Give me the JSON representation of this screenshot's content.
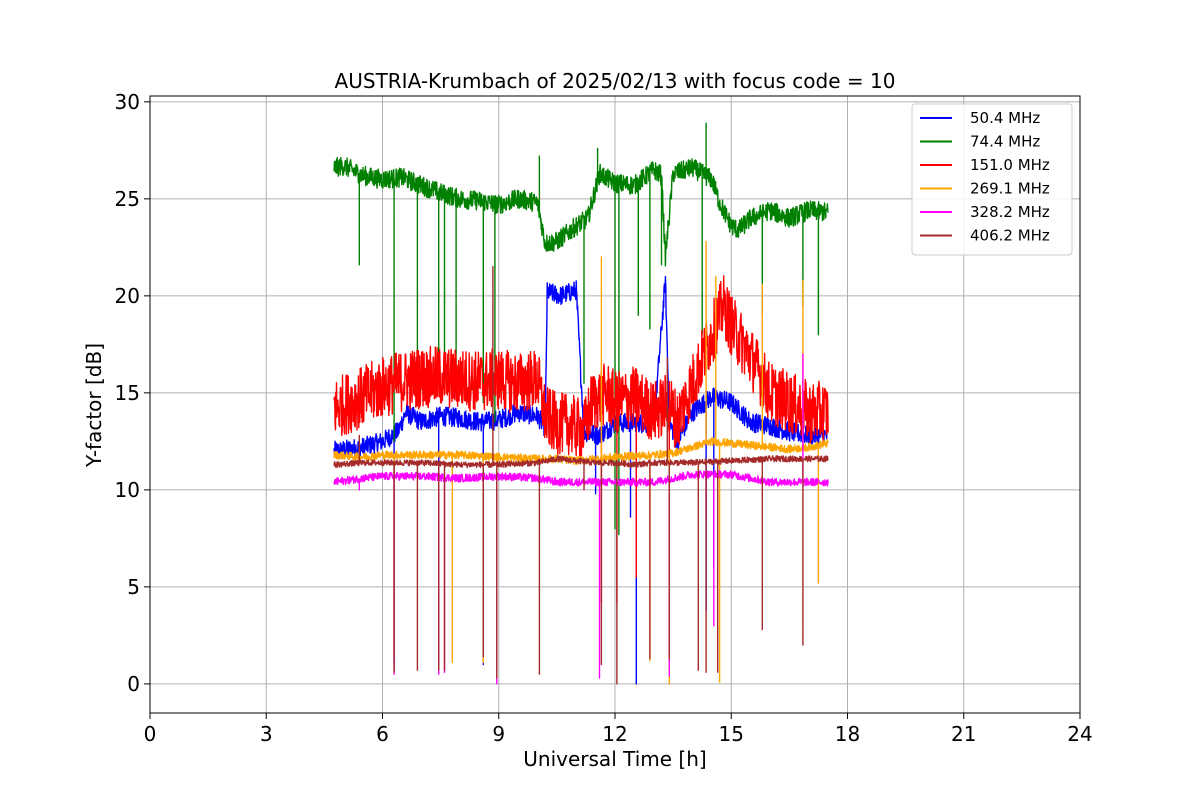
{
  "chart_data": {
    "type": "line",
    "title": "AUSTRIA-Krumbach of 2025/02/13 with focus code = 10",
    "xlabel": "Universal Time [h]",
    "ylabel": "Y-factor [dB]",
    "xlim": [
      0,
      24
    ],
    "ylim": [
      -1.5,
      30.3
    ],
    "xticks": [
      0,
      3,
      6,
      9,
      12,
      15,
      18,
      21,
      24
    ],
    "yticks": [
      0,
      5,
      10,
      15,
      20,
      25,
      30
    ],
    "grid": true,
    "legend_position": "top-right",
    "series": [
      {
        "name": "50.4 MHz",
        "color": "#0000ff",
        "spread": 0.5,
        "points": [
          [
            4.75,
            12.0
          ],
          [
            5.5,
            12.2
          ],
          [
            6.0,
            12.5
          ],
          [
            6.4,
            13.0
          ],
          [
            6.6,
            14.0
          ],
          [
            7.0,
            13.5
          ],
          [
            7.5,
            13.8
          ],
          [
            8.0,
            13.7
          ],
          [
            8.5,
            13.5
          ],
          [
            9.0,
            13.6
          ],
          [
            9.5,
            14.0
          ],
          [
            10.0,
            13.8
          ],
          [
            10.2,
            13.2
          ],
          [
            10.25,
            20.2
          ],
          [
            10.6,
            20.0
          ],
          [
            11.0,
            20.3
          ],
          [
            11.2,
            13.0
          ],
          [
            11.6,
            12.8
          ],
          [
            12.0,
            13.4
          ],
          [
            12.5,
            13.5
          ],
          [
            13.0,
            13.3
          ],
          [
            13.3,
            20.8
          ],
          [
            13.4,
            13.5
          ],
          [
            13.6,
            12.5
          ],
          [
            14.0,
            14.0
          ],
          [
            14.5,
            14.8
          ],
          [
            15.0,
            14.5
          ],
          [
            15.5,
            13.5
          ],
          [
            16.0,
            13.3
          ],
          [
            16.5,
            13.0
          ],
          [
            17.0,
            12.8
          ],
          [
            17.5,
            12.8
          ]
        ],
        "dips": [
          [
            6.3,
            1.0
          ],
          [
            7.45,
            1.0
          ],
          [
            8.6,
            1.0
          ],
          [
            11.5,
            9.8
          ],
          [
            12.4,
            8.6
          ],
          [
            12.55,
            0.0
          ],
          [
            14.35,
            3.8
          ],
          [
            14.55,
            6.0
          ],
          [
            15.8,
            13.0
          ]
        ]
      },
      {
        "name": "74.4 MHz",
        "color": "#008000",
        "spread": 0.5,
        "points": [
          [
            4.75,
            26.6
          ],
          [
            5.0,
            26.7
          ],
          [
            5.5,
            26.2
          ],
          [
            6.0,
            26.0
          ],
          [
            6.5,
            26.1
          ],
          [
            7.0,
            25.7
          ],
          [
            7.5,
            25.3
          ],
          [
            8.0,
            25.0
          ],
          [
            8.5,
            24.9
          ],
          [
            9.0,
            24.7
          ],
          [
            9.5,
            25.0
          ],
          [
            10.0,
            24.8
          ],
          [
            10.2,
            22.7
          ],
          [
            10.5,
            22.8
          ],
          [
            11.0,
            23.6
          ],
          [
            11.3,
            24.0
          ],
          [
            11.6,
            26.3
          ],
          [
            12.0,
            25.8
          ],
          [
            12.5,
            25.7
          ],
          [
            13.0,
            26.5
          ],
          [
            13.2,
            26.2
          ],
          [
            13.3,
            22.0
          ],
          [
            13.5,
            26.3
          ],
          [
            14.0,
            26.6
          ],
          [
            14.5,
            26.0
          ],
          [
            14.7,
            24.8
          ],
          [
            15.0,
            23.6
          ],
          [
            15.2,
            23.4
          ],
          [
            15.5,
            24.0
          ],
          [
            16.0,
            24.4
          ],
          [
            16.5,
            24.0
          ],
          [
            17.0,
            24.4
          ],
          [
            17.5,
            24.3
          ]
        ],
        "dips": [
          [
            5.4,
            21.6
          ],
          [
            6.3,
            12.5
          ],
          [
            6.9,
            15.0
          ],
          [
            7.45,
            16.0
          ],
          [
            7.6,
            15.5
          ],
          [
            7.9,
            15.0
          ],
          [
            8.6,
            14.5
          ],
          [
            8.9,
            13.5
          ],
          [
            10.05,
            27.2
          ],
          [
            11.2,
            15.5
          ],
          [
            11.55,
            27.6
          ],
          [
            12.0,
            8.0
          ],
          [
            12.1,
            7.7
          ],
          [
            12.6,
            19.0
          ],
          [
            12.9,
            18.3
          ],
          [
            13.2,
            21.6
          ],
          [
            14.25,
            18.0
          ],
          [
            14.35,
            28.9
          ],
          [
            15.8,
            19.0
          ],
          [
            16.85,
            19.5
          ],
          [
            17.25,
            18.0
          ]
        ]
      },
      {
        "name": "151.0 MHz",
        "color": "#ff0000",
        "spread": 1.6,
        "points": [
          [
            4.75,
            14.2
          ],
          [
            5.5,
            14.8
          ],
          [
            6.0,
            15.3
          ],
          [
            6.5,
            15.6
          ],
          [
            7.0,
            15.8
          ],
          [
            7.5,
            15.8
          ],
          [
            8.0,
            15.7
          ],
          [
            8.5,
            15.6
          ],
          [
            9.0,
            15.7
          ],
          [
            9.5,
            15.5
          ],
          [
            10.0,
            15.7
          ],
          [
            10.2,
            13.8
          ],
          [
            10.5,
            13.4
          ],
          [
            10.8,
            13.4
          ],
          [
            11.2,
            13.0
          ],
          [
            11.4,
            14.5
          ],
          [
            11.8,
            15.0
          ],
          [
            12.0,
            14.5
          ],
          [
            12.5,
            14.8
          ],
          [
            13.0,
            14.0
          ],
          [
            13.4,
            14.5
          ],
          [
            13.6,
            13.5
          ],
          [
            14.0,
            15.5
          ],
          [
            14.4,
            17.5
          ],
          [
            14.8,
            19.5
          ],
          [
            15.0,
            18.5
          ],
          [
            15.3,
            17.5
          ],
          [
            15.6,
            16.5
          ],
          [
            16.0,
            15.0
          ],
          [
            16.5,
            14.5
          ],
          [
            17.0,
            14.0
          ],
          [
            17.5,
            14.0
          ]
        ],
        "dips": [
          [
            11.65,
            4.2
          ],
          [
            12.05,
            4.2
          ],
          [
            12.55,
            5.5
          ],
          [
            13.4,
            6.5
          ]
        ]
      },
      {
        "name": "269.1 MHz",
        "color": "#ffa500",
        "spread": 0.2,
        "points": [
          [
            4.75,
            11.8
          ],
          [
            5.5,
            11.7
          ],
          [
            6.0,
            11.8
          ],
          [
            7.0,
            11.8
          ],
          [
            8.0,
            11.8
          ],
          [
            9.0,
            11.7
          ],
          [
            10.0,
            11.6
          ],
          [
            10.5,
            11.6
          ],
          [
            11.0,
            11.5
          ],
          [
            12.0,
            11.7
          ],
          [
            13.0,
            11.8
          ],
          [
            13.5,
            11.9
          ],
          [
            14.0,
            12.2
          ],
          [
            14.5,
            12.5
          ],
          [
            15.0,
            12.4
          ],
          [
            16.0,
            12.2
          ],
          [
            16.5,
            12.1
          ],
          [
            17.0,
            12.2
          ],
          [
            17.5,
            12.4
          ]
        ],
        "dips": [
          [
            6.3,
            1.2
          ],
          [
            7.8,
            1.1
          ],
          [
            8.6,
            1.1
          ],
          [
            8.95,
            9.0
          ],
          [
            11.65,
            22.0
          ],
          [
            12.9,
            1.2
          ],
          [
            13.4,
            0.0
          ],
          [
            14.35,
            22.8
          ],
          [
            14.6,
            21.0
          ],
          [
            14.7,
            0.1
          ],
          [
            15.8,
            20.6
          ],
          [
            16.85,
            20.8
          ],
          [
            17.25,
            5.2
          ]
        ]
      },
      {
        "name": "328.2 MHz",
        "color": "#ff00ff",
        "spread": 0.2,
        "points": [
          [
            4.75,
            10.4
          ],
          [
            5.5,
            10.6
          ],
          [
            6.0,
            10.7
          ],
          [
            7.0,
            10.7
          ],
          [
            8.0,
            10.6
          ],
          [
            9.0,
            10.7
          ],
          [
            10.0,
            10.6
          ],
          [
            10.5,
            10.4
          ],
          [
            11.0,
            10.4
          ],
          [
            12.0,
            10.4
          ],
          [
            13.0,
            10.4
          ],
          [
            13.5,
            10.6
          ],
          [
            14.0,
            10.8
          ],
          [
            14.5,
            10.8
          ],
          [
            15.0,
            10.8
          ],
          [
            15.5,
            10.6
          ],
          [
            16.0,
            10.4
          ],
          [
            17.0,
            10.4
          ],
          [
            17.5,
            10.4
          ]
        ],
        "dips": [
          [
            5.4,
            10.0
          ],
          [
            6.3,
            0.5
          ],
          [
            7.45,
            0.5
          ],
          [
            7.6,
            0.6
          ],
          [
            8.95,
            0.0
          ],
          [
            11.6,
            0.3
          ],
          [
            13.4,
            0.4
          ],
          [
            14.35,
            8.5
          ],
          [
            14.55,
            3.0
          ],
          [
            16.85,
            17.0
          ]
        ]
      },
      {
        "name": "406.2 MHz",
        "color": "#a52a2a",
        "spread": 0.15,
        "points": [
          [
            4.75,
            11.3
          ],
          [
            5.5,
            11.4
          ],
          [
            6.0,
            11.4
          ],
          [
            7.0,
            11.4
          ],
          [
            8.0,
            11.3
          ],
          [
            9.0,
            11.3
          ],
          [
            10.0,
            11.4
          ],
          [
            10.5,
            11.6
          ],
          [
            11.0,
            11.5
          ],
          [
            11.5,
            11.4
          ],
          [
            12.0,
            11.4
          ],
          [
            12.5,
            11.3
          ],
          [
            13.0,
            11.4
          ],
          [
            13.5,
            11.4
          ],
          [
            14.0,
            11.4
          ],
          [
            15.0,
            11.5
          ],
          [
            16.0,
            11.6
          ],
          [
            17.0,
            11.6
          ],
          [
            17.5,
            11.6
          ]
        ],
        "dips": [
          [
            5.4,
            12.8
          ],
          [
            6.3,
            0.6
          ],
          [
            6.9,
            0.7
          ],
          [
            7.45,
            0.7
          ],
          [
            7.6,
            0.7
          ],
          [
            8.6,
            1.4
          ],
          [
            8.85,
            21.5
          ],
          [
            8.95,
            0.3
          ],
          [
            10.05,
            0.5
          ],
          [
            11.2,
            10.0
          ],
          [
            11.65,
            1.0
          ],
          [
            12.05,
            0.0
          ],
          [
            12.9,
            1.3
          ],
          [
            13.35,
            16.8
          ],
          [
            13.4,
            1.3
          ],
          [
            14.15,
            0.7
          ],
          [
            14.35,
            0.6
          ],
          [
            14.65,
            0.6
          ],
          [
            15.8,
            2.8
          ],
          [
            16.85,
            2.0
          ]
        ]
      }
    ]
  }
}
